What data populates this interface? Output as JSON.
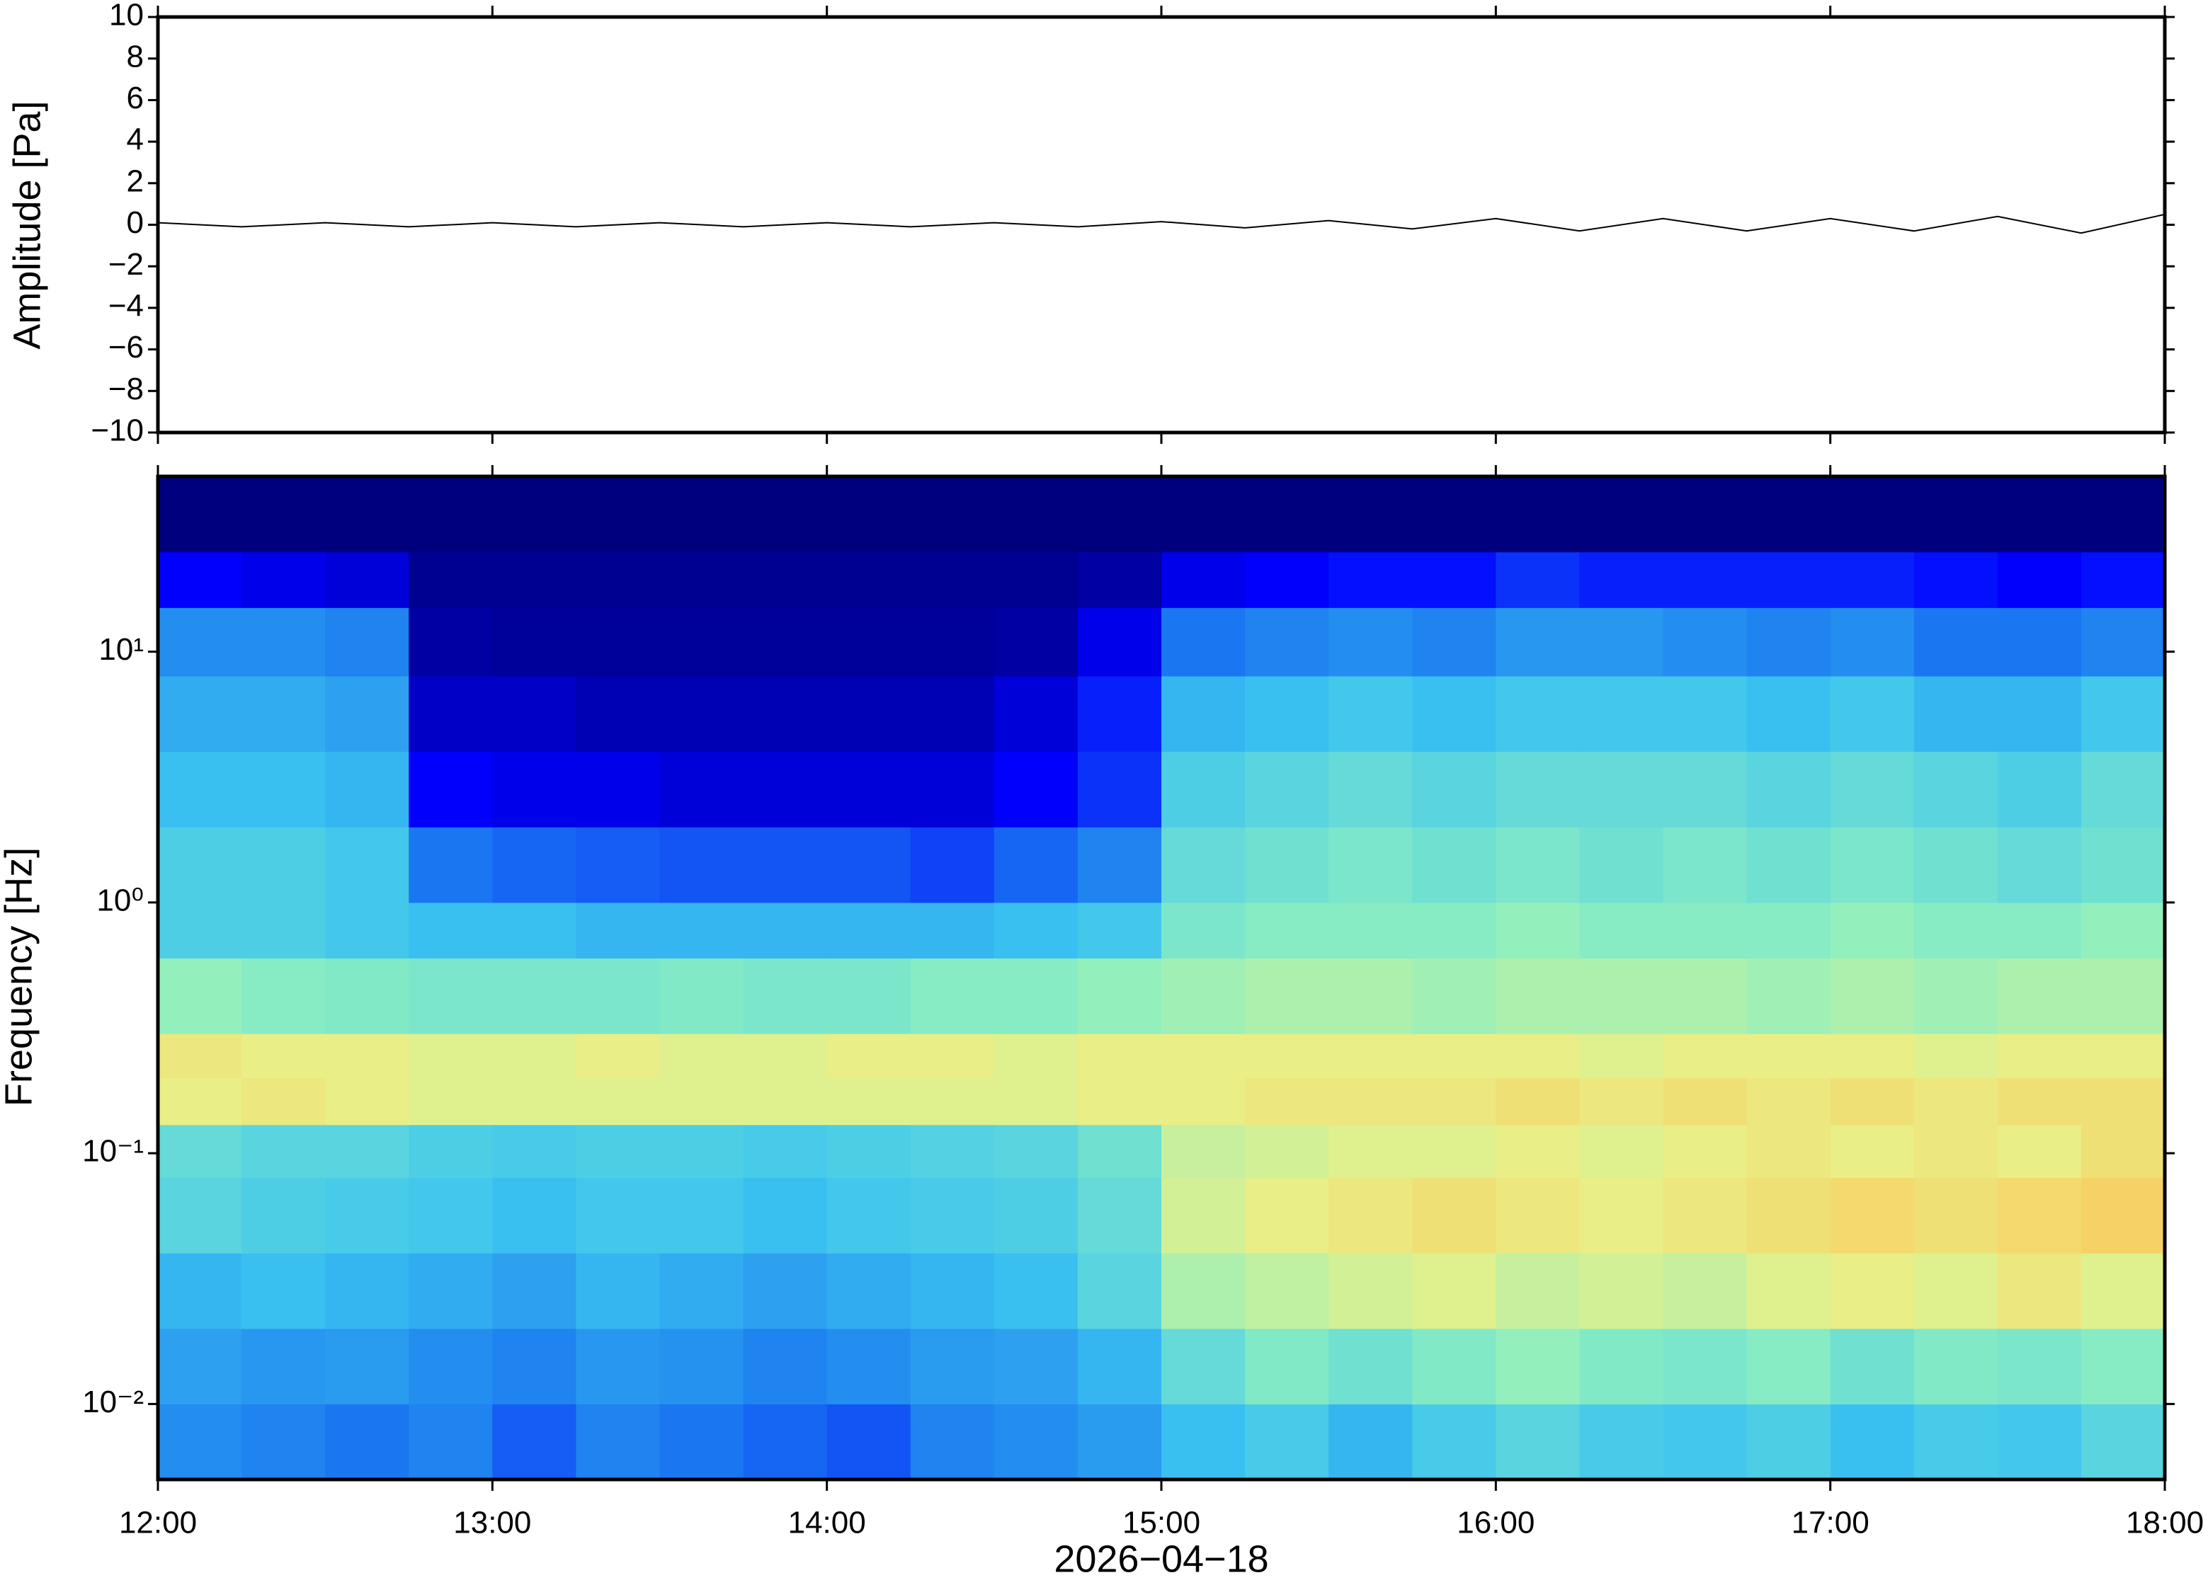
{
  "chart_data": [
    {
      "type": "line",
      "y_label": "Amplitude [Pa]",
      "color": "#000000",
      "xlim": [
        "12:00",
        "18:00"
      ],
      "xticks": [
        "12:00",
        "13:00",
        "14:00",
        "15:00",
        "16:00",
        "17:00",
        "18:00"
      ],
      "x": [
        "12:00",
        "12:15",
        "12:30",
        "12:45",
        "13:00",
        "13:15",
        "13:30",
        "13:45",
        "14:00",
        "14:15",
        "14:30",
        "14:45",
        "15:00",
        "15:15",
        "15:30",
        "15:45",
        "16:00",
        "16:15",
        "16:30",
        "16:45",
        "17:00",
        "17:15",
        "17:30",
        "17:45",
        "18:00"
      ],
      "values": [
        0.1,
        -0.1,
        0.1,
        -0.1,
        0.1,
        -0.1,
        0.1,
        -0.1,
        0.1,
        -0.1,
        0.1,
        -0.1,
        0.15,
        -0.15,
        0.2,
        -0.2,
        0.3,
        -0.3,
        0.3,
        -0.3,
        0.3,
        -0.3,
        0.4,
        -0.4,
        0.5
      ],
      "ylim": [
        -10,
        10
      ],
      "yticks": [
        {
          "value": -10,
          "label": "−10"
        },
        {
          "value": -8,
          "label": "−8"
        },
        {
          "value": -6,
          "label": "−6"
        },
        {
          "value": -4,
          "label": "−4"
        },
        {
          "value": -2,
          "label": "−2"
        },
        0,
        2,
        4,
        6,
        8,
        10
      ]
    },
    {
      "type": "heatmap",
      "y_label": "Frequency [Hz]",
      "x_label": "2026−04−18",
      "log_y": true,
      "xlim": [
        "12:00",
        "18:00"
      ],
      "xticks": [
        "12:00",
        "13:00",
        "14:00",
        "15:00",
        "16:00",
        "17:00",
        "18:00"
      ],
      "ylim": [
        0.005,
        50
      ],
      "yticks": [
        {
          "value": 0.01,
          "label": "10⁻²"
        },
        {
          "value": 0.1,
          "label": "10⁻¹"
        },
        {
          "value": 1,
          "label": "10⁰"
        },
        {
          "value": 10,
          "label": "10¹"
        }
      ],
      "x_bins": [
        "12:00",
        "12:15",
        "12:30",
        "12:45",
        "13:00",
        "13:15",
        "13:30",
        "13:45",
        "14:00",
        "14:15",
        "14:30",
        "14:45",
        "15:00",
        "15:15",
        "15:30",
        "15:45",
        "16:00",
        "16:15",
        "16:30",
        "16:45",
        "17:00",
        "17:15",
        "17:30",
        "17:45",
        "18:00"
      ],
      "y_bins": [
        0.005,
        0.01,
        0.02,
        0.04,
        0.08,
        0.13,
        0.2,
        0.3,
        0.6,
        1,
        2,
        4,
        8,
        15,
        25,
        50
      ],
      "zlim": [
        0,
        100
      ],
      "colormap": [
        "#00007f",
        "#0000ff",
        "#1c7cf0",
        "#3cc4f0",
        "#8ef0c0",
        "#e8f088",
        "#ffbe50",
        "#ff7030"
      ],
      "values": [
        [
          32,
          30,
          28,
          30,
          25,
          30,
          28,
          26,
          24,
          30,
          32,
          35,
          42,
          45,
          40,
          45,
          48,
          45,
          44,
          46,
          42,
          45,
          44,
          48
        ],
        [
          36,
          34,
          35,
          32,
          30,
          34,
          33,
          30,
          32,
          35,
          36,
          40,
          50,
          55,
          52,
          55,
          58,
          55,
          54,
          56,
          52,
          55,
          54,
          56
        ],
        [
          40,
          42,
          40,
          38,
          36,
          40,
          38,
          36,
          38,
          40,
          42,
          48,
          62,
          65,
          68,
          70,
          66,
          68,
          66,
          70,
          72,
          70,
          74,
          70
        ],
        [
          48,
          46,
          45,
          44,
          42,
          44,
          44,
          42,
          44,
          45,
          46,
          50,
          68,
          72,
          74,
          76,
          74,
          72,
          74,
          76,
          78,
          76,
          78,
          80
        ],
        [
          50,
          48,
          48,
          46,
          45,
          46,
          46,
          45,
          46,
          47,
          48,
          52,
          66,
          68,
          70,
          70,
          72,
          70,
          72,
          74,
          72,
          74,
          72,
          76
        ],
        [
          72,
          74,
          72,
          70,
          70,
          70,
          70,
          70,
          70,
          70,
          70,
          72,
          72,
          74,
          74,
          74,
          76,
          74,
          76,
          74,
          76,
          74,
          76,
          76
        ],
        [
          74,
          72,
          72,
          70,
          70,
          72,
          70,
          70,
          72,
          72,
          70,
          72,
          72,
          72,
          72,
          72,
          72,
          70,
          72,
          72,
          72,
          70,
          72,
          72
        ],
        [
          58,
          56,
          55,
          54,
          54,
          54,
          55,
          54,
          54,
          56,
          56,
          58,
          60,
          62,
          62,
          60,
          62,
          62,
          62,
          60,
          62,
          60,
          62,
          62
        ],
        [
          46,
          46,
          44,
          42,
          42,
          40,
          40,
          40,
          40,
          40,
          42,
          44,
          54,
          56,
          56,
          56,
          58,
          56,
          56,
          56,
          58,
          56,
          56,
          58
        ],
        [
          46,
          46,
          44,
          28,
          26,
          25,
          24,
          24,
          24,
          22,
          26,
          30,
          50,
          52,
          54,
          52,
          54,
          52,
          54,
          52,
          54,
          52,
          50,
          52
        ],
        [
          42,
          42,
          40,
          14,
          12,
          12,
          10,
          10,
          10,
          10,
          14,
          20,
          46,
          48,
          50,
          48,
          50,
          50,
          50,
          48,
          50,
          48,
          46,
          50
        ],
        [
          38,
          38,
          36,
          8,
          8,
          6,
          6,
          6,
          6,
          6,
          10,
          18,
          40,
          42,
          44,
          42,
          44,
          44,
          44,
          42,
          44,
          40,
          40,
          44
        ],
        [
          32,
          32,
          30,
          4,
          3,
          3,
          3,
          3,
          3,
          3,
          4,
          12,
          28,
          30,
          32,
          30,
          34,
          34,
          32,
          30,
          32,
          28,
          28,
          30
        ],
        [
          14,
          12,
          10,
          2,
          2,
          2,
          2,
          2,
          2,
          2,
          2,
          4,
          12,
          14,
          16,
          16,
          20,
          18,
          18,
          18,
          18,
          16,
          14,
          16
        ],
        [
          0,
          0,
          0,
          0,
          0,
          0,
          0,
          0,
          0,
          0,
          0,
          0,
          0,
          0,
          0,
          0,
          0,
          0,
          0,
          0,
          0,
          0,
          0,
          0
        ]
      ]
    }
  ]
}
